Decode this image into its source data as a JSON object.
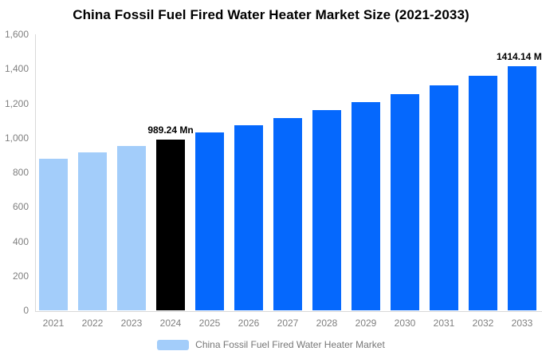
{
  "title": "China Fossil Fuel Fired Water Heater Market Size (2021-2033)",
  "chart_data": {
    "type": "bar",
    "title": "China Fossil Fuel Fired Water Heater Market Size (2021-2033)",
    "categories": [
      "2021",
      "2022",
      "2023",
      "2024",
      "2025",
      "2026",
      "2027",
      "2028",
      "2029",
      "2030",
      "2031",
      "2032",
      "2033"
    ],
    "values": [
      878,
      914,
      951,
      989.24,
      1029,
      1071,
      1114,
      1160,
      1207,
      1255,
      1306,
      1359,
      1414.14
    ],
    "unit": "Mn",
    "ylim": [
      0,
      1600
    ],
    "ytick_values": [
      0,
      200,
      400,
      600,
      800,
      1000,
      1200,
      1400,
      1600
    ],
    "ytick_labels": [
      "0",
      "200",
      "400",
      "600",
      "800",
      "1,000",
      "1,200",
      "1,400",
      "1,600"
    ],
    "grid": false,
    "bar_colors": [
      "#A3CDFA",
      "#A3CDFA",
      "#A3CDFA",
      "#000000",
      "#0568FD",
      "#0568FD",
      "#0568FD",
      "#0568FD",
      "#0568FD",
      "#0568FD",
      "#0568FD",
      "#0568FD",
      "#0568FD"
    ],
    "data_labels": [
      {
        "category": "2024",
        "text": "989.24 Mn"
      },
      {
        "category": "2033",
        "text": "1414.14 Mn"
      }
    ],
    "legend": {
      "position": "bottom",
      "label": "China Fossil Fuel Fired Water Heater Market",
      "swatch_color": "#A3CDFA"
    },
    "colors": {
      "historical_bar": "#A3CDFA",
      "base_year_bar": "#000000",
      "forecast_bar": "#0568FD",
      "axis_line": "#D9D9D9",
      "tick_text": "#808080",
      "legend_text": "#767676",
      "title_text": "#000000",
      "background": "#FFFFFF"
    }
  }
}
